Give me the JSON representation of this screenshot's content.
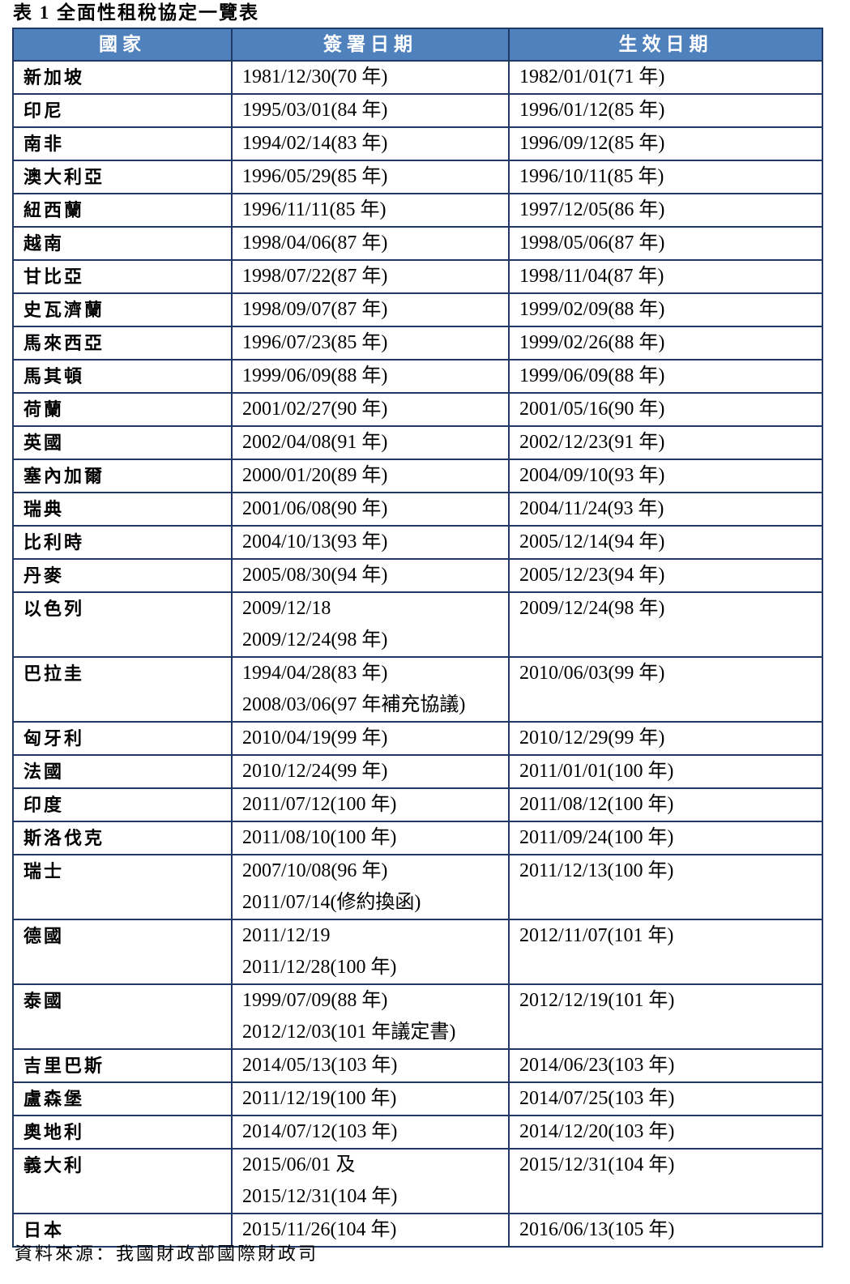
{
  "title": "表 1 全面性租稅協定一覽表",
  "table": {
    "headers": [
      "國家",
      "簽署日期",
      "生效日期"
    ],
    "rows": [
      {
        "country": "新加坡",
        "signed": [
          "1981/12/30(70 年)"
        ],
        "effective": [
          "1982/01/01(71 年)"
        ]
      },
      {
        "country": "印尼",
        "signed": [
          "1995/03/01(84 年)"
        ],
        "effective": [
          "1996/01/12(85 年)"
        ]
      },
      {
        "country": "南非",
        "signed": [
          "1994/02/14(83 年)"
        ],
        "effective": [
          "1996/09/12(85 年)"
        ]
      },
      {
        "country": "澳大利亞",
        "signed": [
          "1996/05/29(85 年)"
        ],
        "effective": [
          "1996/10/11(85 年)"
        ]
      },
      {
        "country": "紐西蘭",
        "signed": [
          "1996/11/11(85 年)"
        ],
        "effective": [
          "1997/12/05(86 年)"
        ]
      },
      {
        "country": "越南",
        "signed": [
          "1998/04/06(87 年)"
        ],
        "effective": [
          "1998/05/06(87 年)"
        ]
      },
      {
        "country": "甘比亞",
        "signed": [
          "1998/07/22(87 年)"
        ],
        "effective": [
          "1998/11/04(87 年)"
        ]
      },
      {
        "country": "史瓦濟蘭",
        "signed": [
          "1998/09/07(87 年)"
        ],
        "effective": [
          "1999/02/09(88 年)"
        ]
      },
      {
        "country": "馬來西亞",
        "signed": [
          "1996/07/23(85 年)"
        ],
        "effective": [
          "1999/02/26(88 年)"
        ]
      },
      {
        "country": "馬其頓",
        "signed": [
          "1999/06/09(88 年)"
        ],
        "effective": [
          "1999/06/09(88 年)"
        ]
      },
      {
        "country": "荷蘭",
        "signed": [
          "2001/02/27(90 年)"
        ],
        "effective": [
          "2001/05/16(90 年)"
        ]
      },
      {
        "country": "英國",
        "signed": [
          "2002/04/08(91 年)"
        ],
        "effective": [
          "2002/12/23(91 年)"
        ]
      },
      {
        "country": "塞內加爾",
        "signed": [
          "2000/01/20(89 年)"
        ],
        "effective": [
          "2004/09/10(93 年)"
        ]
      },
      {
        "country": "瑞典",
        "signed": [
          "2001/06/08(90 年)"
        ],
        "effective": [
          "2004/11/24(93 年)"
        ]
      },
      {
        "country": "比利時",
        "signed": [
          "2004/10/13(93 年)"
        ],
        "effective": [
          "2005/12/14(94 年)"
        ]
      },
      {
        "country": "丹麥",
        "signed": [
          "2005/08/30(94 年)"
        ],
        "effective": [
          "2005/12/23(94 年)"
        ]
      },
      {
        "country": "以色列",
        "signed": [
          "2009/12/18",
          "2009/12/24(98 年)"
        ],
        "effective": [
          "2009/12/24(98 年)"
        ]
      },
      {
        "country": "巴拉圭",
        "signed": [
          "1994/04/28(83 年)",
          "2008/03/06(97 年補充協議)"
        ],
        "effective": [
          "2010/06/03(99 年)"
        ]
      },
      {
        "country": "匈牙利",
        "signed": [
          "2010/04/19(99 年)"
        ],
        "effective": [
          "2010/12/29(99 年)"
        ]
      },
      {
        "country": "法國",
        "signed": [
          "2010/12/24(99 年)"
        ],
        "effective": [
          "2011/01/01(100 年)"
        ]
      },
      {
        "country": "印度",
        "signed": [
          "2011/07/12(100 年)"
        ],
        "effective": [
          "2011/08/12(100 年)"
        ]
      },
      {
        "country": "斯洛伐克",
        "signed": [
          "2011/08/10(100 年)"
        ],
        "effective": [
          "2011/09/24(100 年)"
        ]
      },
      {
        "country": "瑞士",
        "signed": [
          "2007/10/08(96 年)",
          "2011/07/14(修約換函)"
        ],
        "effective": [
          "2011/12/13(100 年)"
        ]
      },
      {
        "country": "德國",
        "signed": [
          "2011/12/19",
          "2011/12/28(100 年)"
        ],
        "effective": [
          "2012/11/07(101 年)"
        ]
      },
      {
        "country": "泰國",
        "signed": [
          "1999/07/09(88 年)",
          "2012/12/03(101 年議定書)"
        ],
        "effective": [
          "2012/12/19(101 年)"
        ]
      },
      {
        "country": "吉里巴斯",
        "signed": [
          "2014/05/13(103 年)"
        ],
        "effective": [
          "2014/06/23(103 年)"
        ]
      },
      {
        "country": "盧森堡",
        "signed": [
          "2011/12/19(100 年)"
        ],
        "effective": [
          "2014/07/25(103 年)"
        ]
      },
      {
        "country": "奧地利",
        "signed": [
          "2014/07/12(103 年)"
        ],
        "effective": [
          "2014/12/20(103 年)"
        ]
      },
      {
        "country": "義大利",
        "signed": [
          "2015/06/01 及",
          "2015/12/31(104 年)"
        ],
        "effective": [
          "2015/12/31(104 年)"
        ]
      },
      {
        "country": "日本",
        "signed": [
          "2015/11/26(104 年)"
        ],
        "effective": [
          "2016/06/13(105 年)"
        ]
      }
    ]
  },
  "source": "資料來源：我國財政部國際財政司",
  "colors": {
    "header_bg": "#4f81bd",
    "border": "#1f3864",
    "header_text": "#ffffff"
  }
}
